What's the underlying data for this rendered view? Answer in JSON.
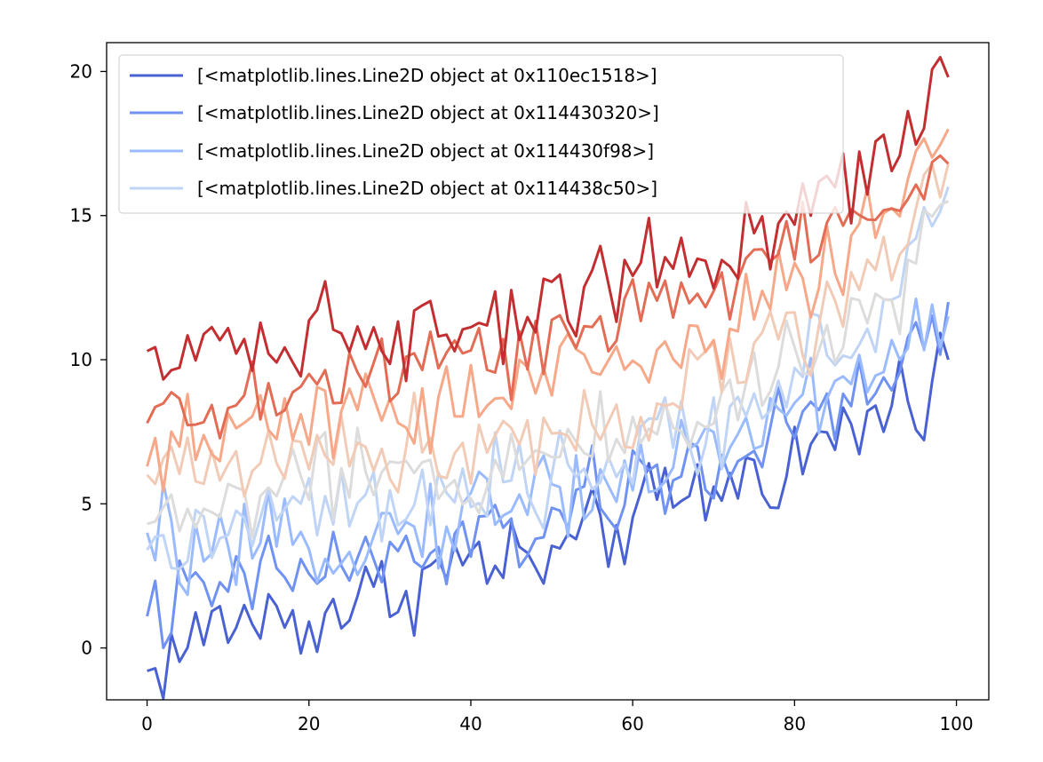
{
  "chart_data": {
    "type": "line",
    "title": "",
    "xlabel": "",
    "ylabel": "",
    "xlim": [
      -5,
      104
    ],
    "ylim": [
      -1.8,
      21.0
    ],
    "x_ticks": [
      0,
      20,
      40,
      60,
      80,
      100
    ],
    "y_ticks": [
      0,
      5,
      10,
      15,
      20
    ],
    "x_tick_labels": [
      "0",
      "20",
      "40",
      "60",
      "80",
      "100"
    ],
    "y_tick_labels": [
      "0",
      "5",
      "10",
      "15",
      "20"
    ],
    "grid": false,
    "legend_position": "top-left",
    "legend_entries": [
      "[<matplotlib.lines.Line2D object at 0x110ec1518>]",
      "[<matplotlib.lines.Line2D object at 0x114430320>]",
      "[<matplotlib.lines.Line2D object at 0x114430f98>]",
      "[<matplotlib.lines.Line2D object at 0x114438c50>]"
    ],
    "x_points": 100,
    "series": [
      {
        "name": "[<matplotlib.lines.Line2D object at 0x110ec1518>]",
        "color": "#4961d2",
        "anchors": [
          [
            0,
            -0.8
          ],
          [
            10,
            1.0
          ],
          [
            20,
            1.0
          ],
          [
            30,
            2.0
          ],
          [
            40,
            3.0
          ],
          [
            50,
            3.0
          ],
          [
            60,
            4.5
          ],
          [
            70,
            5.5
          ],
          [
            80,
            6.5
          ],
          [
            90,
            8.0
          ],
          [
            99,
            10.0
          ]
        ]
      },
      {
        "name": "[<matplotlib.lines.Line2D object at 0x114430320>]",
        "color": "#6f92f3",
        "anchors": [
          [
            0,
            1.1
          ],
          [
            10,
            2.0
          ],
          [
            20,
            2.8
          ],
          [
            30,
            3.0
          ],
          [
            40,
            3.5
          ],
          [
            50,
            4.5
          ],
          [
            60,
            5.5
          ],
          [
            70,
            6.5
          ],
          [
            80,
            7.5
          ],
          [
            90,
            8.8
          ],
          [
            99,
            12.0
          ]
        ]
      },
      {
        "name": "[<matplotlib.lines.Line2D object at 0x114430f98>]",
        "color": "#9abbff",
        "anchors": [
          [
            0,
            4.0
          ],
          [
            10,
            2.8
          ],
          [
            20,
            3.8
          ],
          [
            30,
            4.0
          ],
          [
            40,
            4.8
          ],
          [
            50,
            5.5
          ],
          [
            60,
            6.0
          ],
          [
            70,
            7.0
          ],
          [
            80,
            8.5
          ],
          [
            90,
            9.8
          ],
          [
            99,
            11.5
          ]
        ]
      },
      {
        "name": "[<matplotlib.lines.Line2D object at 0x114438c50>]",
        "color": "#c0d4f5",
        "anchors": [
          [
            0,
            3.4
          ],
          [
            10,
            4.0
          ],
          [
            20,
            4.8
          ],
          [
            30,
            4.8
          ],
          [
            40,
            5.0
          ],
          [
            50,
            6.0
          ],
          [
            60,
            6.5
          ],
          [
            70,
            8.0
          ],
          [
            80,
            9.5
          ],
          [
            90,
            11.0
          ],
          [
            99,
            16.0
          ]
        ]
      },
      {
        "name": "",
        "color": "#dddcdc",
        "anchors": [
          [
            0,
            4.3
          ],
          [
            10,
            5.0
          ],
          [
            20,
            5.8
          ],
          [
            30,
            5.8
          ],
          [
            40,
            6.0
          ],
          [
            50,
            6.8
          ],
          [
            60,
            7.5
          ],
          [
            70,
            8.5
          ],
          [
            80,
            10.0
          ],
          [
            90,
            11.8
          ],
          [
            99,
            15.5
          ]
        ]
      },
      {
        "name": "",
        "color": "#f2cbb7",
        "anchors": [
          [
            0,
            6.0
          ],
          [
            10,
            6.5
          ],
          [
            20,
            7.0
          ],
          [
            30,
            6.8
          ],
          [
            40,
            7.2
          ],
          [
            50,
            7.8
          ],
          [
            60,
            8.3
          ],
          [
            70,
            9.5
          ],
          [
            80,
            11.0
          ],
          [
            90,
            13.0
          ],
          [
            99,
            16.8
          ]
        ]
      },
      {
        "name": "",
        "color": "#f7a889",
        "anchors": [
          [
            0,
            6.3
          ],
          [
            10,
            7.5
          ],
          [
            20,
            8.0
          ],
          [
            30,
            8.0
          ],
          [
            40,
            8.8
          ],
          [
            50,
            9.3
          ],
          [
            60,
            10.0
          ],
          [
            70,
            11.0
          ],
          [
            80,
            12.5
          ],
          [
            90,
            14.5
          ],
          [
            99,
            18.0
          ]
        ]
      },
      {
        "name": "",
        "color": "#e36c55",
        "anchors": [
          [
            0,
            7.8
          ],
          [
            10,
            8.5
          ],
          [
            20,
            9.0
          ],
          [
            30,
            9.5
          ],
          [
            40,
            10.0
          ],
          [
            50,
            10.5
          ],
          [
            60,
            11.5
          ],
          [
            70,
            12.5
          ],
          [
            80,
            14.0
          ],
          [
            90,
            15.5
          ],
          [
            99,
            16.8
          ]
        ]
      },
      {
        "name": "",
        "color": "#c32e31",
        "anchors": [
          [
            0,
            10.3
          ],
          [
            10,
            10.5
          ],
          [
            20,
            11.0
          ],
          [
            30,
            10.8
          ],
          [
            40,
            11.5
          ],
          [
            50,
            12.0
          ],
          [
            60,
            13.5
          ],
          [
            70,
            14.0
          ],
          [
            80,
            15.0
          ],
          [
            90,
            17.0
          ],
          [
            99,
            19.8
          ]
        ]
      }
    ]
  }
}
